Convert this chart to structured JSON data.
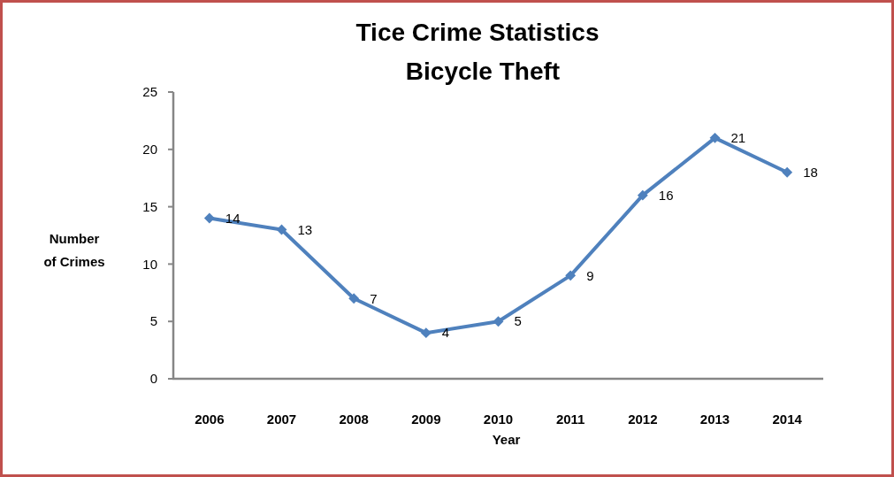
{
  "chart_data": {
    "type": "line",
    "title": "Tice Crime Statistics",
    "subtitle": "Bicycle Theft",
    "xlabel": "Year",
    "ylabel": "Number of Crimes",
    "categories": [
      "2006",
      "2007",
      "2008",
      "2009",
      "2010",
      "2011",
      "2012",
      "2013",
      "2014"
    ],
    "series": [
      {
        "color": "#4f81bd",
        "values": [
          14,
          13,
          7,
          4,
          5,
          9,
          16,
          21,
          18
        ]
      }
    ],
    "ylim": [
      0,
      25
    ],
    "yticks": [
      0,
      5,
      10,
      15,
      20,
      25
    ],
    "marker": "diamond",
    "line_style": "solid",
    "data_labels": true
  }
}
